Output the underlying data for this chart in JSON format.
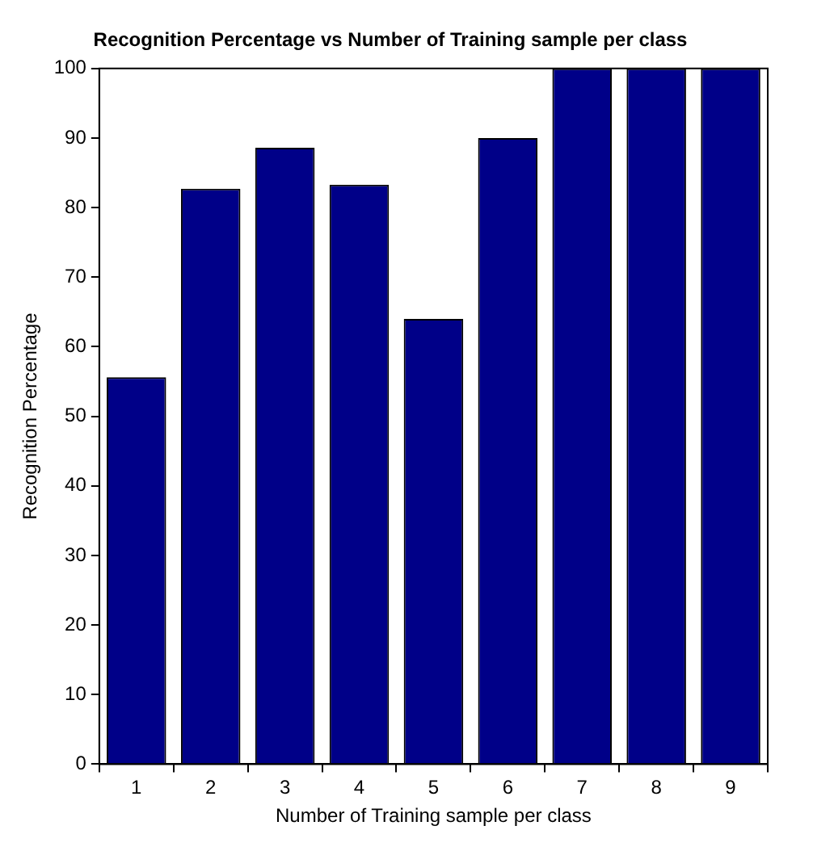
{
  "chart_data": {
    "type": "bar",
    "title": "Recognition Percentage vs Number of Training sample per class",
    "xlabel": "Number of Training sample per class",
    "ylabel": "Recognition Percentage",
    "categories": [
      "1",
      "2",
      "3",
      "4",
      "5",
      "6",
      "7",
      "8",
      "9"
    ],
    "values": [
      55.6,
      82.7,
      88.6,
      83.3,
      64,
      90,
      100,
      100,
      100
    ],
    "color": "#000088",
    "ylim": [
      0,
      100
    ],
    "yticks": [
      0,
      10,
      20,
      30,
      40,
      50,
      60,
      70,
      80,
      90,
      100
    ],
    "grid": false,
    "legend": false
  }
}
